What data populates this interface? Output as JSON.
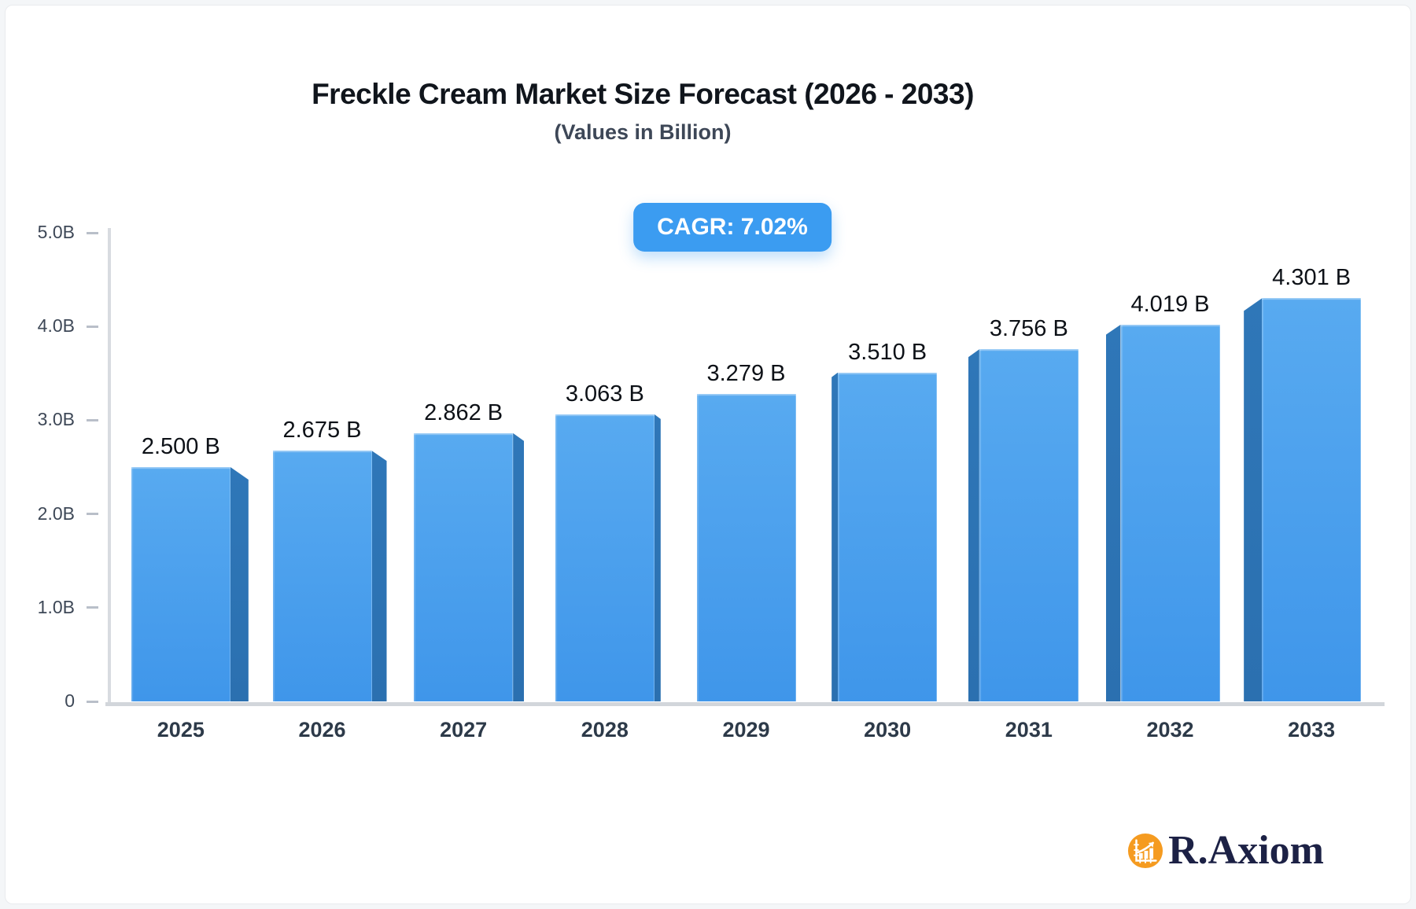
{
  "page": {
    "background": "#f4f6f8",
    "card_background": "#ffffff"
  },
  "header": {
    "title": "Freckle Cream Market Size Forecast (2026 - 2033)",
    "subtitle": "(Values in Billion)",
    "cagr_badge": "CAGR: 7.02%"
  },
  "chart_data": {
    "type": "bar",
    "title": "Freckle Cream Market Size Forecast (2026 - 2033)",
    "subtitle": "(Values in Billion)",
    "annotation": "CAGR: 7.02%",
    "categories": [
      "2025",
      "2026",
      "2027",
      "2028",
      "2029",
      "2030",
      "2031",
      "2032",
      "2033"
    ],
    "values": [
      2.5,
      2.675,
      2.862,
      3.063,
      3.279,
      3.51,
      3.756,
      4.019,
      4.301
    ],
    "value_labels": [
      "2.500 B",
      "2.675 B",
      "2.862 B",
      "3.063 B",
      "3.279 B",
      "3.510 B",
      "3.756 B",
      "4.019 B",
      "4.301 B"
    ],
    "unit": "Billion",
    "ylim": [
      0,
      5
    ],
    "ytick_labels_bottom_up": [
      "0",
      "1.0B",
      "2.0B",
      "3.0B",
      "4.0B",
      "5.0B"
    ],
    "grid": false,
    "legend": false,
    "style": "3d-perspective-bars, side shading faces chart center",
    "colors": {
      "bar_face_top": "#58aaf0",
      "bar_face_bottom": "#3f96ea",
      "bar_side": "#2b70b0",
      "badge": "#3b9cf1",
      "axis_line": "#d8dbe0",
      "baseline": "#d2d6db",
      "tick": "#b9bfc9",
      "ylabel": "#3e4857",
      "xlabel": "#2d3a49",
      "value_label": "#0d1117",
      "title": "#10151c",
      "subtitle": "#3d4757"
    }
  },
  "branding": {
    "name": "R.Axiom",
    "icon": "bar-chart-logo-icon",
    "circle_color": "#f59b20",
    "text_color": "#1c2145"
  }
}
